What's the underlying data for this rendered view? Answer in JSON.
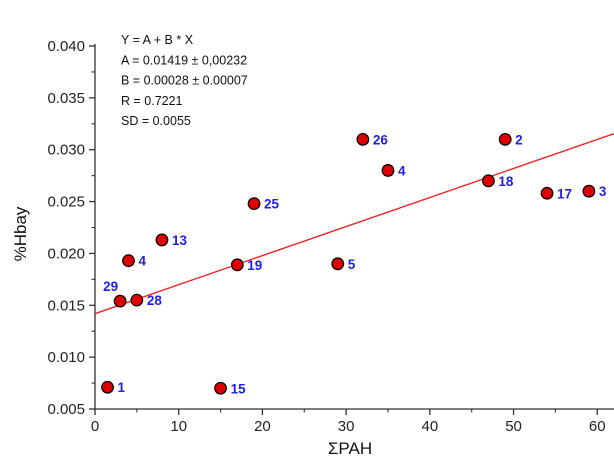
{
  "chart_data": {
    "type": "scatter",
    "xlabel": "ΣPAH",
    "ylabel": "%Hbay",
    "xlim": [
      0,
      62
    ],
    "ylim": [
      0.005,
      0.04
    ],
    "x_ticks": [
      "0",
      "10",
      "20",
      "30",
      "40",
      "50",
      "60"
    ],
    "y_ticks": [
      "0.005",
      "0.010",
      "0.015",
      "0.020",
      "0.025",
      "0.030",
      "0.035",
      "0.040"
    ],
    "grid": false,
    "stats": [
      "Y = A + B * X",
      "A = 0.01419 ± 0,00232",
      "B = 0.00028 ± 0.00007",
      "R = 0.7221",
      "SD = 0.0055"
    ],
    "fit": {
      "intercept": 0.01419,
      "slope": 0.00028
    },
    "points": [
      {
        "label": "1",
        "x": 1.5,
        "y": 0.0071
      },
      {
        "label": "29",
        "x": 3,
        "y": 0.0154
      },
      {
        "label": "4",
        "x": 4,
        "y": 0.0193
      },
      {
        "label": "28",
        "x": 5,
        "y": 0.0155
      },
      {
        "label": "13",
        "x": 8,
        "y": 0.0213
      },
      {
        "label": "15",
        "x": 15,
        "y": 0.007
      },
      {
        "label": "19",
        "x": 17,
        "y": 0.0189
      },
      {
        "label": "25",
        "x": 19,
        "y": 0.0248
      },
      {
        "label": "5",
        "x": 29,
        "y": 0.019
      },
      {
        "label": "26",
        "x": 32,
        "y": 0.031
      },
      {
        "label": "4",
        "x": 35,
        "y": 0.028
      },
      {
        "label": "18",
        "x": 47,
        "y": 0.027
      },
      {
        "label": "2",
        "x": 49,
        "y": 0.031
      },
      {
        "label": "17",
        "x": 54,
        "y": 0.0258
      },
      {
        "label": "3",
        "x": 59,
        "y": 0.026
      }
    ],
    "colors": {
      "marker_fill": "#dd0000",
      "marker_stroke": "#000000",
      "fit_line": "#ee2222",
      "point_label": "#2222dd",
      "axis": "#333333"
    }
  }
}
